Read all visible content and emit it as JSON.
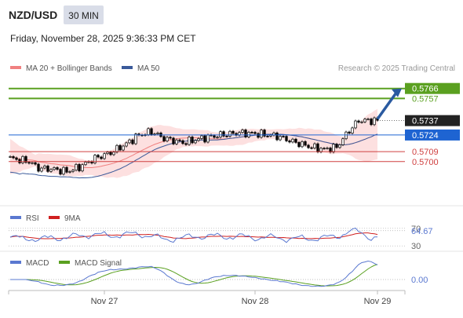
{
  "header": {
    "symbol": "NZD/USD",
    "timeframe": "30 MIN",
    "datetime": "Friday, November 28, 2025 9:36:33 PM CET"
  },
  "legend": {
    "ma20_label": "MA 20 + Bollinger Bands",
    "ma50_label": "MA 50",
    "credit": "Research © 2025 Trading Central"
  },
  "colors": {
    "candle": "#000000",
    "ma20": "#f08080",
    "bollinger_fill": "#fde0e0",
    "ma50": "#3a5a9a",
    "resistance": "#5aa020",
    "pivot": "#1e64d2",
    "support": "#d04040",
    "arrow": "#2a5aa0",
    "rsi": "#5a78d0",
    "rsi_ma": "#d02020",
    "macd": "#5a78d0",
    "macd_signal": "#5aa020"
  },
  "chart_data": [
    {
      "type": "candlestick",
      "panel": "price",
      "ylim": [
        0.568,
        0.5775
      ],
      "x_ticks": [
        {
          "label": "Nov 27",
          "index": 30
        },
        {
          "label": "Nov 28",
          "index": 78
        },
        {
          "label": "Nov 29",
          "index": 117
        }
      ],
      "levels": [
        {
          "value": 0.5766,
          "label": "0.5766",
          "kind": "resistance",
          "boxed": true
        },
        {
          "value": 0.5757,
          "label": "0.5757",
          "kind": "resistance",
          "boxed": false
        },
        {
          "value": 0.5737,
          "label": "0.5737",
          "kind": "last",
          "boxed": true
        },
        {
          "value": 0.5724,
          "label": "0.5724",
          "kind": "pivot",
          "boxed": true
        },
        {
          "value": 0.5709,
          "label": "0.5709",
          "kind": "support",
          "boxed": false
        },
        {
          "value": 0.57,
          "label": "0.5700",
          "kind": "support",
          "boxed": false
        }
      ],
      "forecast_arrow": {
        "from_value": 0.5737,
        "to_value": 0.5766
      },
      "series": [
        {
          "name": "MA 20 + Bollinger Bands",
          "role": "ma20"
        },
        {
          "name": "MA 50",
          "role": "ma50"
        }
      ]
    },
    {
      "type": "line",
      "panel": "rsi",
      "ylim": [
        25,
        75
      ],
      "levels": [
        {
          "value": 70,
          "label": "70"
        },
        {
          "value": 64.67,
          "label": "64.67"
        },
        {
          "value": 30,
          "label": "30"
        }
      ],
      "series": [
        {
          "name": "RSI",
          "role": "rsi"
        },
        {
          "name": "9MA",
          "role": "rsi_ma"
        }
      ]
    },
    {
      "type": "line",
      "panel": "macd",
      "ylim": [
        -0.0012,
        0.0012
      ],
      "levels": [
        {
          "value": 0.0,
          "label": "0.00"
        }
      ],
      "series": [
        {
          "name": "MACD",
          "role": "macd"
        },
        {
          "name": "MACD Signal",
          "role": "macd_signal"
        }
      ]
    }
  ]
}
